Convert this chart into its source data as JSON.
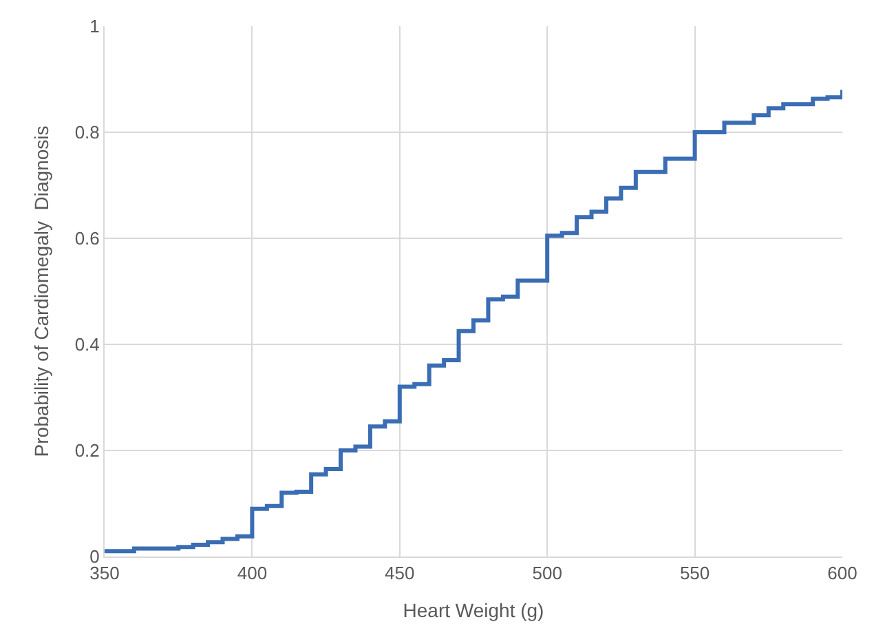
{
  "chart_data": {
    "type": "step",
    "xlabel": "Heart Weight (g)",
    "ylabel": "Probability of Cardiomegaly  Diagnosis",
    "x": [
      350,
      360,
      375,
      380,
      385,
      390,
      395,
      400,
      405,
      410,
      415,
      420,
      425,
      430,
      435,
      440,
      445,
      450,
      455,
      460,
      465,
      470,
      475,
      480,
      485,
      490,
      500,
      505,
      510,
      515,
      520,
      525,
      530,
      540,
      550,
      560,
      570,
      575,
      580,
      590,
      595,
      600
    ],
    "series": [
      {
        "color": "#3a6db3",
        "values": [
          0.01,
          0.015,
          0.018,
          0.022,
          0.027,
          0.033,
          0.038,
          0.09,
          0.095,
          0.12,
          0.122,
          0.155,
          0.165,
          0.2,
          0.207,
          0.245,
          0.255,
          0.32,
          0.325,
          0.36,
          0.37,
          0.425,
          0.445,
          0.485,
          0.49,
          0.52,
          0.605,
          0.61,
          0.64,
          0.65,
          0.675,
          0.695,
          0.725,
          0.75,
          0.8,
          0.818,
          0.832,
          0.845,
          0.853,
          0.863,
          0.866,
          0.88
        ]
      }
    ],
    "xlim": [
      350,
      600
    ],
    "xticks": [
      350,
      400,
      450,
      500,
      550,
      600
    ],
    "ylim": [
      0,
      1
    ],
    "yticks": [
      0,
      0.2,
      0.4,
      0.6,
      0.8,
      1
    ],
    "grid": true,
    "marker": "none",
    "line_style": "solid"
  }
}
